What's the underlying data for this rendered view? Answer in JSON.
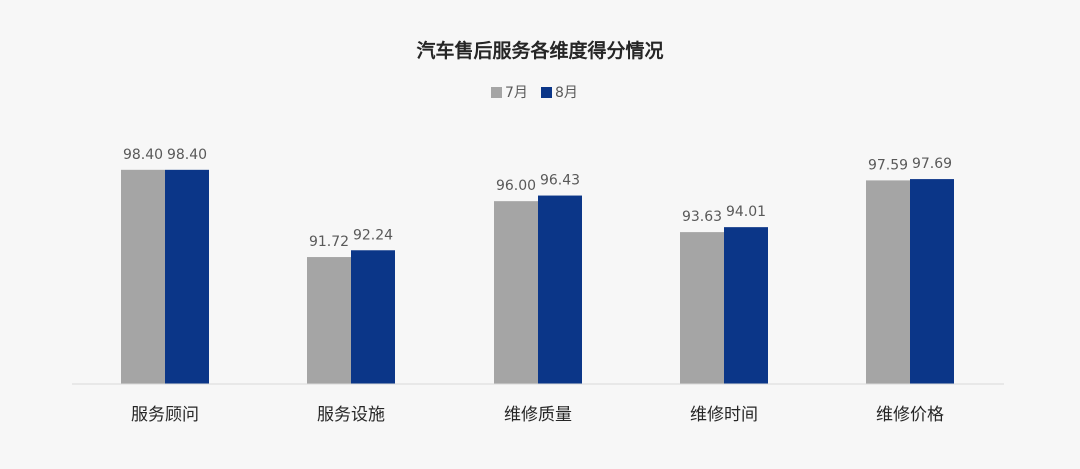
{
  "chart_data": {
    "type": "bar",
    "title": "汽车售后服务各维度得分情况",
    "categories": [
      "服务顾问",
      "服务设施",
      "维修质量",
      "维修时间",
      "维修价格"
    ],
    "series": [
      {
        "name": "7月",
        "color": "#a5a5a5",
        "values": [
          98.4,
          91.72,
          96.0,
          93.63,
          97.59
        ]
      },
      {
        "name": "8月",
        "color": "#0b3688",
        "values": [
          98.4,
          92.24,
          96.43,
          94.01,
          97.69
        ]
      }
    ],
    "value_labels": [
      [
        "98.40",
        "91.72",
        "96.00",
        "93.63",
        "97.59"
      ],
      [
        "98.40",
        "92.24",
        "96.43",
        "94.01",
        "97.69"
      ]
    ],
    "ylim": [
      82,
      100
    ],
    "grid": false,
    "legend_position": "top-center"
  }
}
